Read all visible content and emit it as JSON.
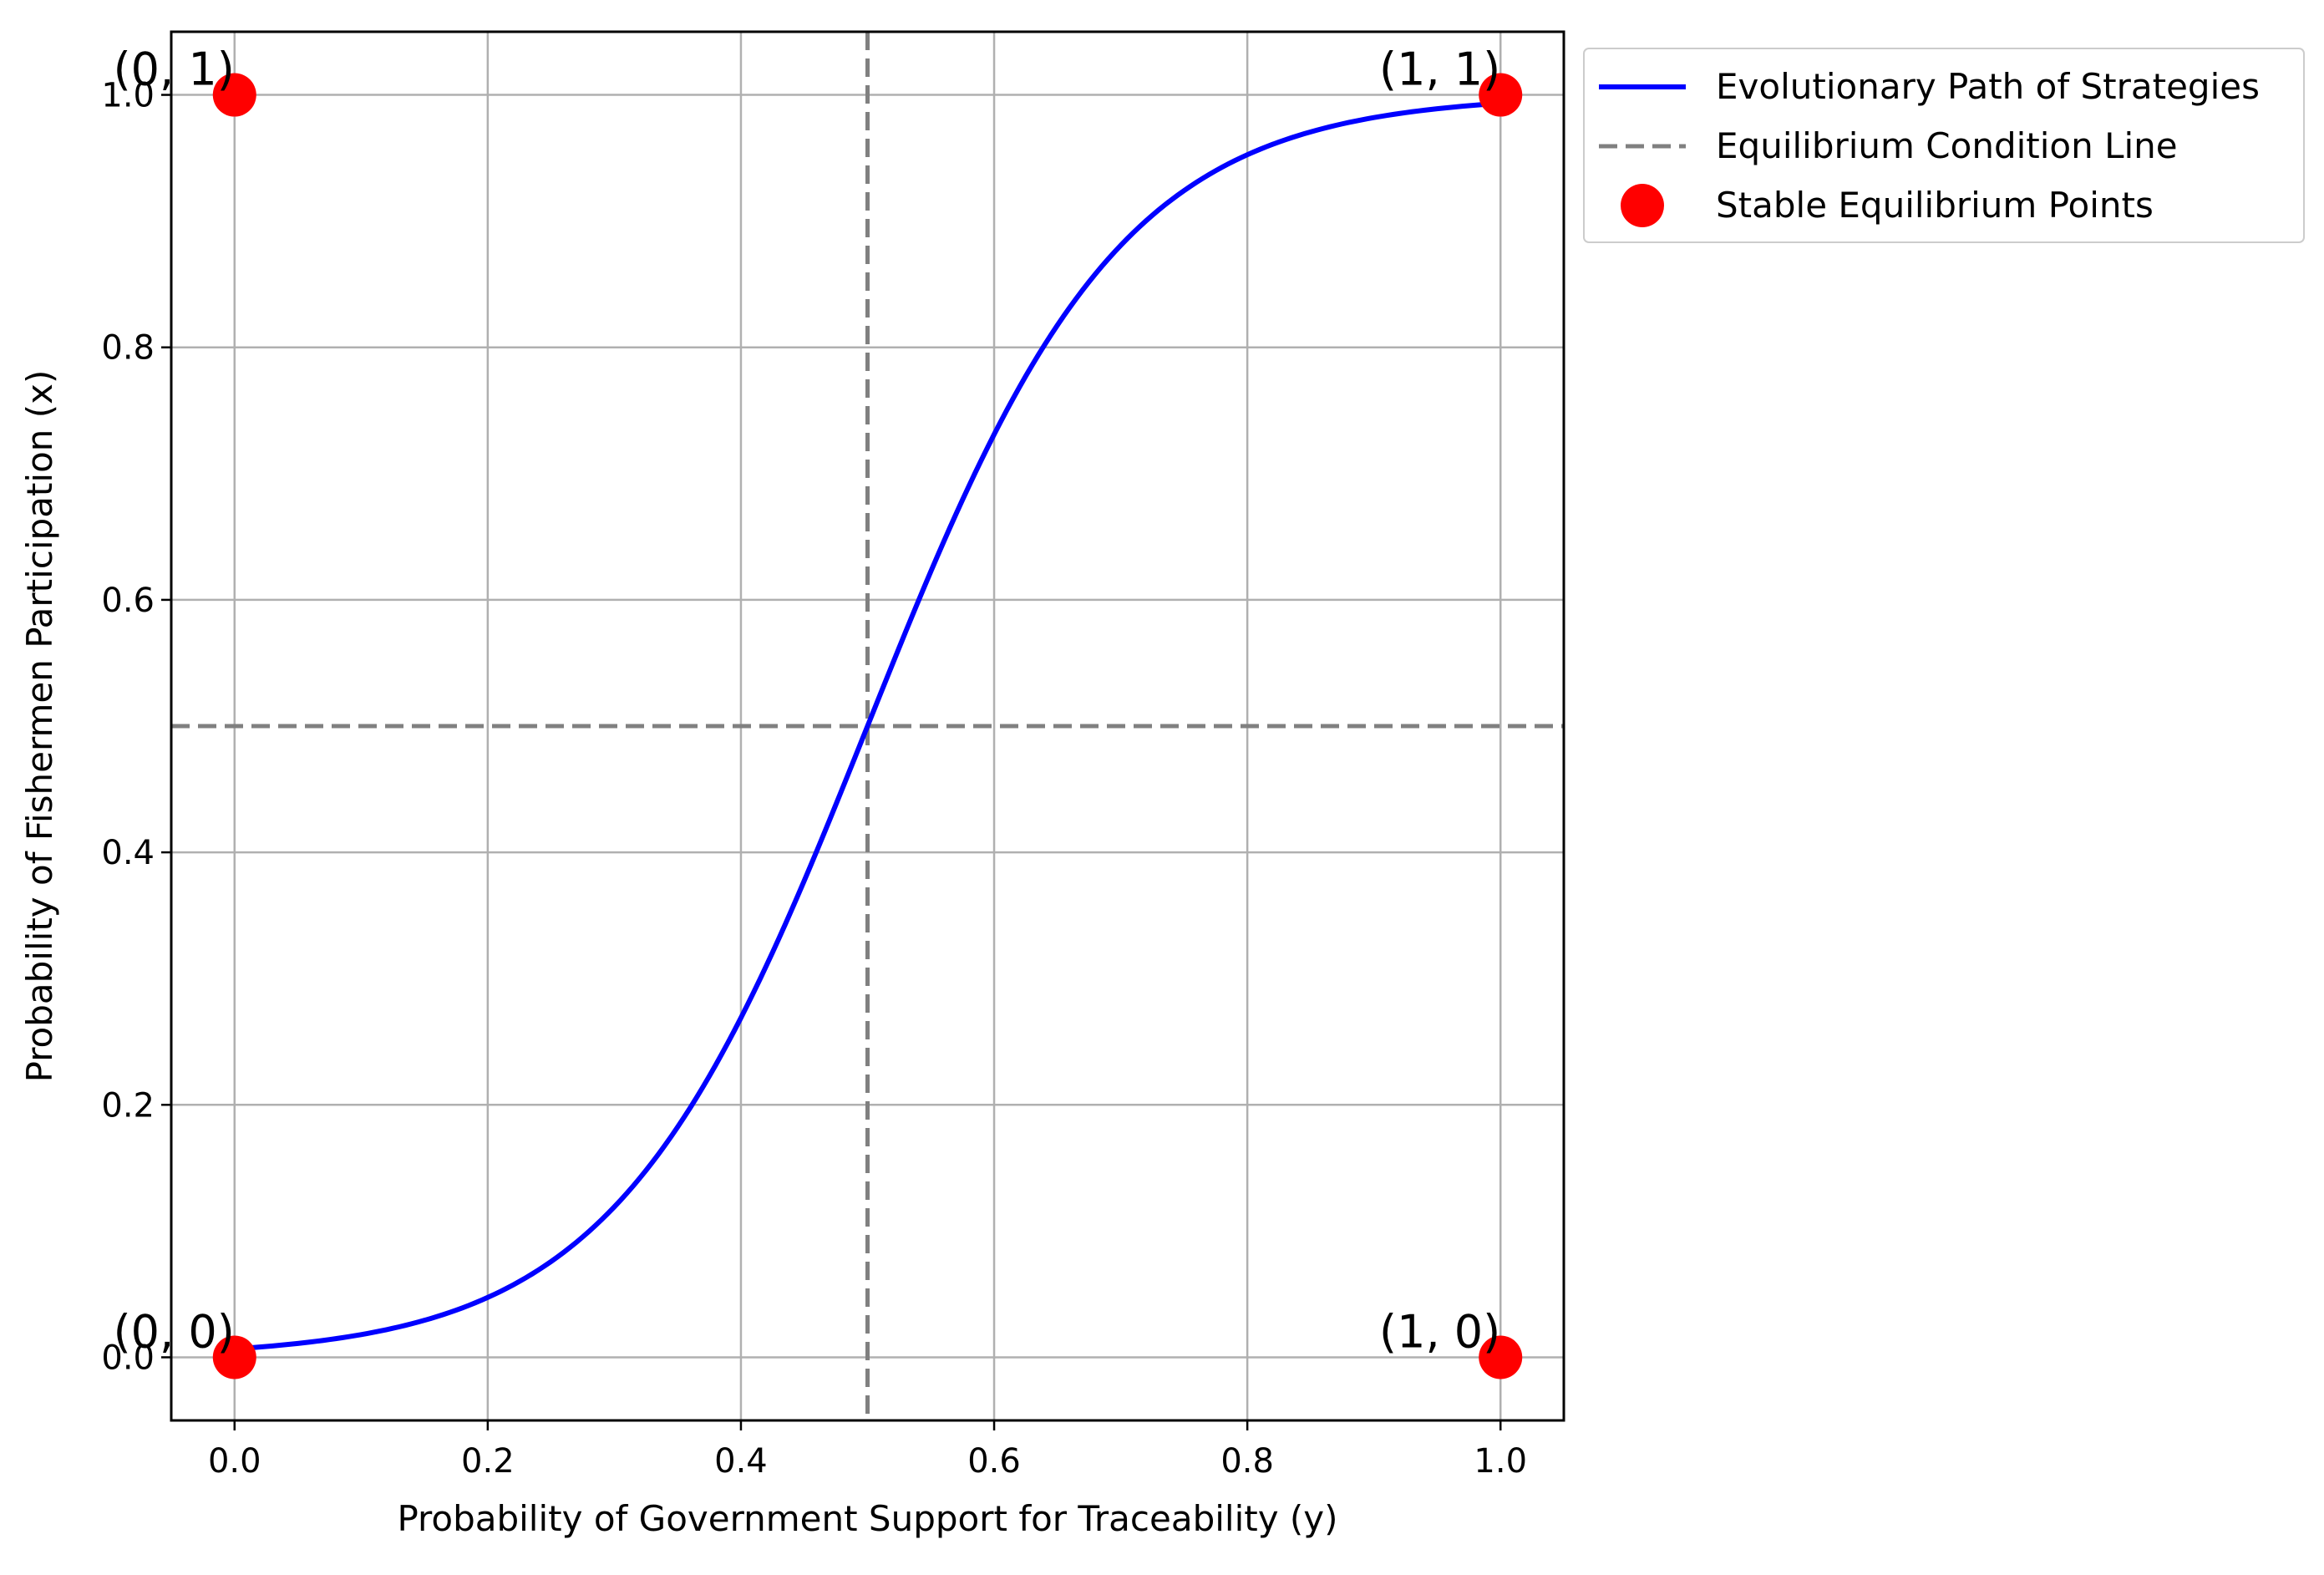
{
  "chart_data": {
    "type": "line",
    "xlabel": "Probability of Government Support for Traceability (y)",
    "ylabel": "Probability of Fishermen Participation (x)",
    "xlim": [
      -0.05,
      1.05
    ],
    "ylim": [
      -0.05,
      1.05
    ],
    "x_ticks": [
      "0.0",
      "0.2",
      "0.4",
      "0.6",
      "0.8",
      "1.0"
    ],
    "y_ticks": [
      "0.0",
      "0.2",
      "0.4",
      "0.6",
      "0.8",
      "1.0"
    ],
    "grid": true,
    "legend_position": "outside upper right",
    "series": [
      {
        "name": "Evolutionary Path of Strategies",
        "kind": "line",
        "color": "#0000ff",
        "function": "logistic",
        "steepness": 10,
        "midpoint": 0.5,
        "x_range": [
          0,
          1
        ]
      },
      {
        "name": "Equilibrium Condition Line",
        "kind": "dashed",
        "color": "#808080",
        "vertical_at_x": 0.5,
        "horizontal_at_y": 0.5
      },
      {
        "name": "Stable Equilibrium Points",
        "kind": "scatter",
        "color": "#ff0000",
        "points": [
          {
            "x": 0,
            "y": 0,
            "label": "(0, 0)"
          },
          {
            "x": 0,
            "y": 1,
            "label": "(0, 1)"
          },
          {
            "x": 1,
            "y": 0,
            "label": "(1, 0)"
          },
          {
            "x": 1,
            "y": 1,
            "label": "(1, 1)"
          }
        ]
      }
    ]
  }
}
